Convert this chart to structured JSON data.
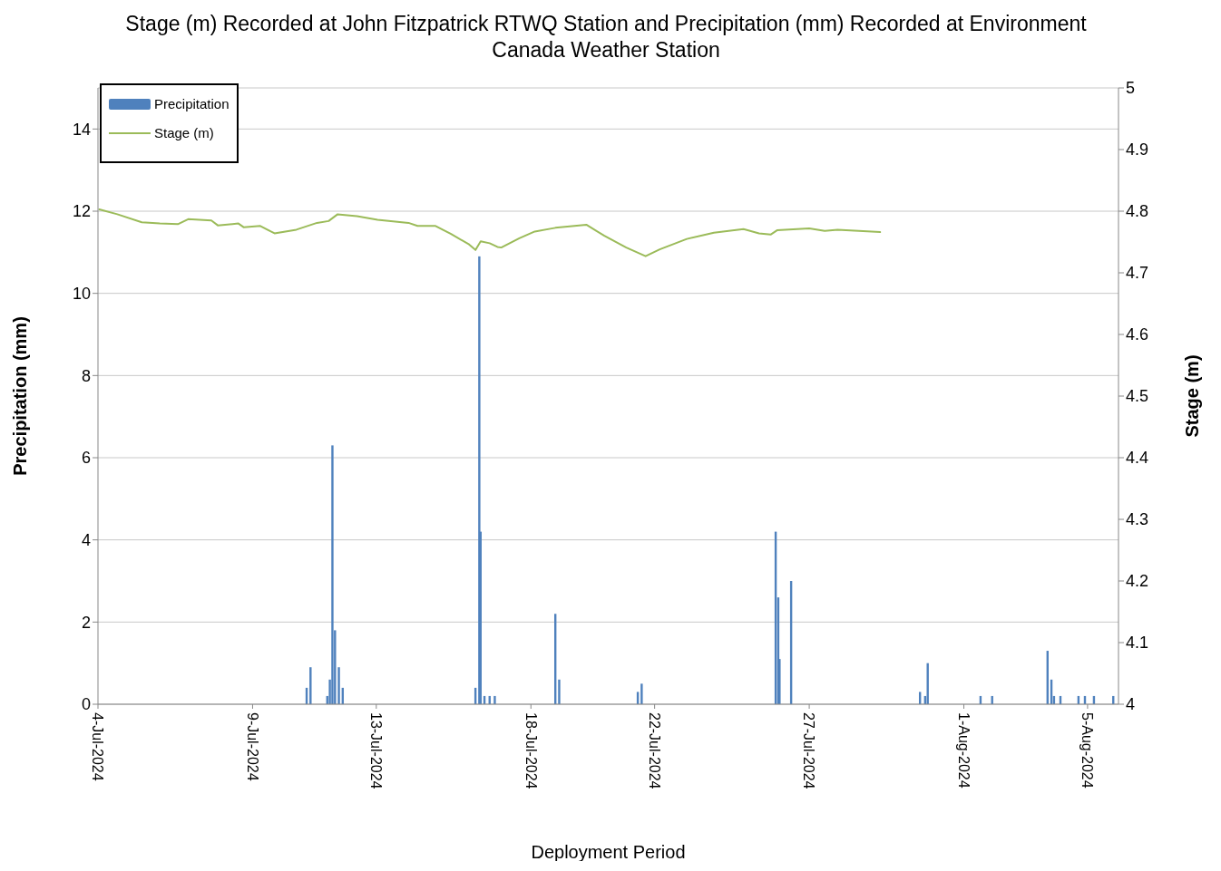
{
  "chart_data": {
    "type": "bar",
    "title": "Stage (m) Recorded at John Fitzpatrick RTWQ Station and Precipitation (mm) Recorded at Environment Canada Weather Station",
    "xlabel": "Deployment Period",
    "ylabel": "Precipitation (mm)",
    "y2label": "Stage (m)",
    "xlim": [
      "2024-07-04",
      "2024-08-06"
    ],
    "xticks": [
      {
        "value": "2024-07-04",
        "label": "4-Jul-2024"
      },
      {
        "value": "2024-07-09",
        "label": "9-Jul-2024"
      },
      {
        "value": "2024-07-13",
        "label": "13-Jul-2024"
      },
      {
        "value": "2024-07-18",
        "label": "18-Jul-2024"
      },
      {
        "value": "2024-07-22",
        "label": "22-Jul-2024"
      },
      {
        "value": "2024-07-27",
        "label": "27-Jul-2024"
      },
      {
        "value": "2024-08-01",
        "label": "1-Aug-2024"
      },
      {
        "value": "2024-08-05",
        "label": "5-Aug-2024"
      }
    ],
    "ylim": [
      0,
      15
    ],
    "yticks": [
      0,
      2,
      4,
      6,
      8,
      10,
      12,
      14
    ],
    "y2lim": [
      4,
      5
    ],
    "y2ticks": [
      4,
      4.1,
      4.2,
      4.3,
      4.4,
      4.5,
      4.6,
      4.7,
      4.8,
      4.9,
      5
    ],
    "grid": "y",
    "legend": "top left",
    "series": [
      {
        "name": "Precipitation",
        "color": "#4f81bd",
        "x": [
          "2024-07-10T18:00",
          "2024-07-10T21:00",
          "2024-07-11T10:00",
          "2024-07-11T12:00",
          "2024-07-11T14:00",
          "2024-07-11T16:00",
          "2024-07-11T19:00",
          "2024-07-11T22:00",
          "2024-07-16T05:00",
          "2024-07-16T08:00",
          "2024-07-16T09:00",
          "2024-07-16T12:00",
          "2024-07-16T16:00",
          "2024-07-16T20:00",
          "2024-07-18T19:00",
          "2024-07-18T22:00",
          "2024-07-21T11:00",
          "2024-07-21T14:00",
          "2024-07-25T22:00",
          "2024-07-26T00:00",
          "2024-07-26T01:00",
          "2024-07-26T10:00",
          "2024-07-30T14:00",
          "2024-07-30T18:00",
          "2024-07-30T20:00",
          "2024-08-01T13:00",
          "2024-08-01T22:00",
          "2024-08-03T17:00",
          "2024-08-03T20:00",
          "2024-08-03T22:00",
          "2024-08-04T03:00",
          "2024-08-04T17:00",
          "2024-08-04T22:00",
          "2024-08-05T05:00",
          "2024-08-05T20:00"
        ],
        "values": [
          0.4,
          0.9,
          0.2,
          0.6,
          6.3,
          1.8,
          0.9,
          0.4,
          0.4,
          10.9,
          4.2,
          0.2,
          0.2,
          0.2,
          2.2,
          0.6,
          0.3,
          0.5,
          4.2,
          2.6,
          1.1,
          3.0,
          0.3,
          0.2,
          1.0,
          0.2,
          0.2,
          1.3,
          0.6,
          0.2,
          0.2,
          0.2,
          0.2,
          0.2,
          0.2
        ]
      },
      {
        "name": "Stage (m)",
        "type": "line",
        "axis": "y2",
        "color": "#9bbb59",
        "x": [
          "2024-07-04T01:00",
          "2024-07-04T15:00",
          "2024-07-05T10:00",
          "2024-07-06T00:00",
          "2024-07-06T14:00",
          "2024-07-06T22:00",
          "2024-07-07T16:00",
          "2024-07-07T21:00",
          "2024-07-08T13:00",
          "2024-07-08T17:00",
          "2024-07-09T06:00",
          "2024-07-09T17:00",
          "2024-07-10T10:00",
          "2024-07-11T02:00",
          "2024-07-11T11:00",
          "2024-07-11T18:00",
          "2024-07-12T09:00",
          "2024-07-13T01:00",
          "2024-07-14T01:00",
          "2024-07-14T08:00",
          "2024-07-14T22:00",
          "2024-07-15T10:00",
          "2024-07-16T00:00",
          "2024-07-16T05:00",
          "2024-07-16T09:00",
          "2024-07-16T16:00",
          "2024-07-16T22:00",
          "2024-07-17T01:00",
          "2024-07-17T15:00",
          "2024-07-18T03:00",
          "2024-07-18T19:00",
          "2024-07-19T19:00",
          "2024-07-20T09:00",
          "2024-07-21T02:00",
          "2024-07-21T17:00",
          "2024-07-22T04:00",
          "2024-07-23T01:00",
          "2024-07-23T22:00",
          "2024-07-24T21:00",
          "2024-07-25T09:00",
          "2024-07-25T18:00",
          "2024-07-25T23:00",
          "2024-07-27T00:00",
          "2024-07-27T12:00",
          "2024-07-27T22:00",
          "2024-07-29T07:00"
        ],
        "values": [
          4.803,
          4.795,
          4.782,
          4.78,
          4.779,
          4.787,
          4.785,
          4.777,
          4.78,
          4.774,
          4.776,
          4.764,
          4.77,
          4.781,
          4.784,
          4.795,
          4.792,
          4.786,
          4.781,
          4.776,
          4.776,
          4.763,
          4.746,
          4.737,
          4.751,
          4.748,
          4.742,
          4.741,
          4.756,
          4.767,
          4.773,
          4.778,
          4.76,
          4.741,
          4.727,
          4.738,
          4.755,
          4.765,
          4.771,
          4.764,
          4.762,
          4.769,
          4.772,
          4.768,
          4.77,
          4.766
        ]
      }
    ]
  }
}
